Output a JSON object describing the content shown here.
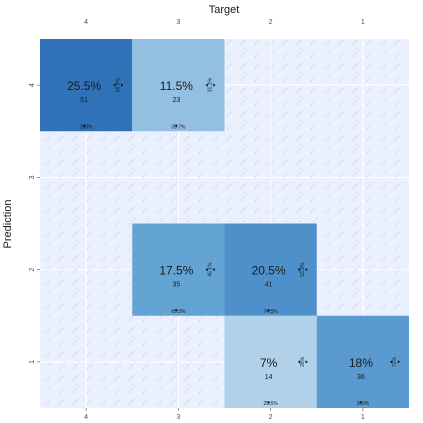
{
  "chart_data": {
    "type": "heatmap",
    "title": "Target",
    "xlabel": "Target",
    "ylabel": "Prediction",
    "x_categories": [
      "4",
      "3",
      "2",
      "1"
    ],
    "y_categories": [
      "4",
      "3",
      "2",
      "1"
    ],
    "grid": true,
    "colors": {
      "panel_bg": "#ebf0fe",
      "grid_line": "#ffffff",
      "hatch": "#b9bed5",
      "text": "#1a1a1a",
      "empty_cell": "#ebf0fe",
      "scale_low": "#bdd7ec",
      "scale_high": "#2f6fb6"
    },
    "cells": [
      {
        "target": "4",
        "prediction": "4",
        "percent_label": "25.5%",
        "count": 51,
        "count_label": "51",
        "col_pct_label": "100%",
        "row_pct_label": "68.9%",
        "fill": "#2f72b7"
      },
      {
        "target": "3",
        "prediction": "4",
        "percent_label": "11.5%",
        "count": 23,
        "count_label": "23",
        "col_pct_label": "39.7%",
        "row_pct_label": "31.1%",
        "fill": "#93bfe0"
      },
      {
        "target": "3",
        "prediction": "2",
        "percent_label": "17.5%",
        "count": 35,
        "count_label": "35",
        "col_pct_label": "60.3%",
        "row_pct_label": "46.1%",
        "fill": "#64a4d4"
      },
      {
        "target": "2",
        "prediction": "2",
        "percent_label": "20.5%",
        "count": 41,
        "count_label": "41",
        "col_pct_label": "74.5%",
        "row_pct_label": "53.9%",
        "fill": "#4e90ca"
      },
      {
        "target": "2",
        "prediction": "1",
        "percent_label": "7%",
        "count": 14,
        "count_label": "14",
        "col_pct_label": "25.5%",
        "row_pct_label": "28%",
        "fill": "#b1d1ea"
      },
      {
        "target": "1",
        "prediction": "1",
        "percent_label": "18%",
        "count": 36,
        "count_label": "36",
        "col_pct_label": "100%",
        "row_pct_label": "72%",
        "fill": "#5a9ad0"
      }
    ]
  }
}
